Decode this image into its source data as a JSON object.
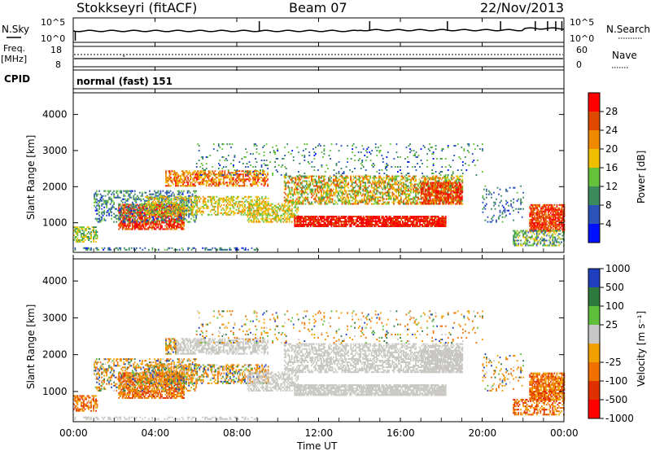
{
  "header": {
    "station": "Stokkseyri (fitACF)",
    "beam": "Beam 07",
    "date": "22/Nov/2013"
  },
  "left_labels": {
    "nsky": "N.Sky",
    "freq_line1": "Freq.",
    "freq_line2": "[MHz]",
    "cpid": "CPID"
  },
  "right_labels": {
    "nsearch": "N.Search",
    "nave": "Nave"
  },
  "cpid_text": "normal (fast) 151",
  "time_axis": {
    "title": "Time UT",
    "ticks": [
      "00:00",
      "04:00",
      "08:00",
      "12:00",
      "16:00",
      "20:00",
      "00:00"
    ]
  },
  "colors": {
    "power": [
      "#0010ff",
      "#2c53b8",
      "#3b8b5e",
      "#66c13a",
      "#f0c000",
      "#f08a00",
      "#e04a00",
      "#ff0000"
    ],
    "velocity": [
      "#1f3fbf",
      "#2e7a3e",
      "#5fbf3a",
      "#c8c8c8",
      "#f0a000",
      "#f07000",
      "#e03000",
      "#ff0000"
    ],
    "grey": "#c8c6c0"
  },
  "chart_data": [
    {
      "type": "line",
      "title": "",
      "panel": "noise",
      "ylabel": "N.Sky",
      "yticks_left": [
        "10^5",
        "10^0"
      ],
      "yticks_right": [
        "10^5",
        "10^0"
      ],
      "x": [
        "00:00",
        "04:00",
        "08:00",
        "12:00",
        "16:00",
        "20:00",
        "00:00"
      ]
    },
    {
      "type": "line",
      "panel": "frequency",
      "ylabel": "Freq. [MHz]",
      "yticks_left": [
        "18",
        "8"
      ],
      "yticks_right": [
        "60",
        "0"
      ],
      "series": [
        {
          "name": "Freq.",
          "values": [
            10.5,
            10.5,
            10.5,
            10.5,
            10.5,
            10.5,
            10.5
          ]
        },
        {
          "name": "Nave",
          "values": [
            50,
            50,
            50,
            50,
            50,
            50,
            50
          ]
        }
      ]
    },
    {
      "type": "heatmap",
      "panel": "power",
      "ylabel": "Slant Range [km]",
      "yticks": [
        "1000",
        "2000",
        "3000",
        "4000"
      ],
      "ylim": [
        180,
        4600
      ],
      "xlim": [
        0,
        24
      ],
      "colorbar": {
        "label": "Power [dB]",
        "ticks": [
          "4",
          "8",
          "12",
          "16",
          "20",
          "24",
          "28"
        ],
        "range": [
          0,
          32
        ]
      }
    },
    {
      "type": "heatmap",
      "panel": "velocity",
      "ylabel": "Slant Range [km]",
      "yticks": [
        "1000",
        "2000",
        "3000",
        "4000"
      ],
      "ylim": [
        180,
        4600
      ],
      "xlim": [
        0,
        24
      ],
      "colorbar": {
        "label": "Velocity [m s⁻¹]",
        "ticks": [
          "1000",
          "500",
          "100",
          "25",
          "-25",
          "-100",
          "-500",
          "-1000"
        ]
      }
    }
  ]
}
